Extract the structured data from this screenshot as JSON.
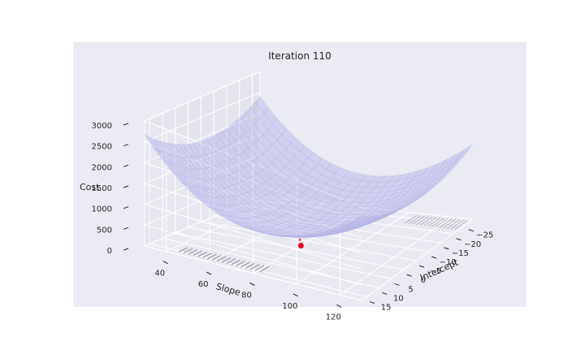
{
  "chart_data": {
    "type": "surface-3d",
    "title": "Iteration 110",
    "xlabel": "Slope",
    "ylabel": "Intercept",
    "zlabel": "Cost",
    "xticks": [
      40,
      60,
      80,
      100,
      120
    ],
    "yticks": [
      -25,
      -20,
      -15,
      -10,
      -5,
      0,
      5,
      10,
      15
    ],
    "zticks": [
      0,
      500,
      1000,
      1500,
      2000,
      2500,
      3000
    ],
    "xlim": [
      30,
      130
    ],
    "ylim": [
      -28,
      17
    ],
    "zlim": [
      0,
      3000
    ],
    "surface": {
      "center_slope": 80,
      "center_intercept": -8,
      "min_cost": 420,
      "a": 0.6,
      "b": 1.2
    },
    "current_point": {
      "slope": 80,
      "intercept": -2,
      "cost": 0,
      "color": "#e0001b"
    },
    "trail_point": {
      "slope": 76,
      "intercept": -5,
      "cost": 0,
      "color": "#e0001b"
    },
    "surface_color": "#b3b3e6",
    "background_color": "#eaeaf2",
    "grid": true
  }
}
